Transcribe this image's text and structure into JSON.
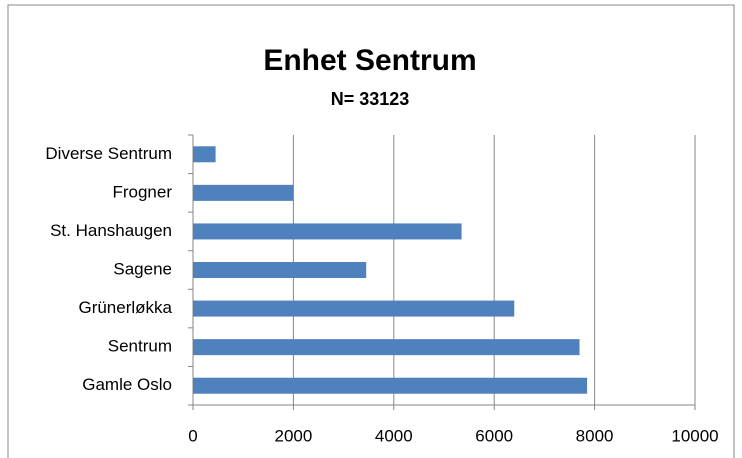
{
  "chart_data": {
    "type": "barh",
    "title": "Enhet Sentrum",
    "subtitle": "N= 33123",
    "categories": [
      "Gamle Oslo",
      "Sentrum",
      "Grünerløkka",
      "Sagene",
      "St. Hanshaugen",
      "Frogner",
      "Diverse Sentrum"
    ],
    "values": [
      7850,
      7700,
      6400,
      3450,
      5350,
      2000,
      450
    ],
    "color": "#4f81bd",
    "xlim": [
      0,
      10000
    ],
    "xticks": [
      0,
      2000,
      4000,
      6000,
      8000,
      10000
    ],
    "grid": true
  }
}
